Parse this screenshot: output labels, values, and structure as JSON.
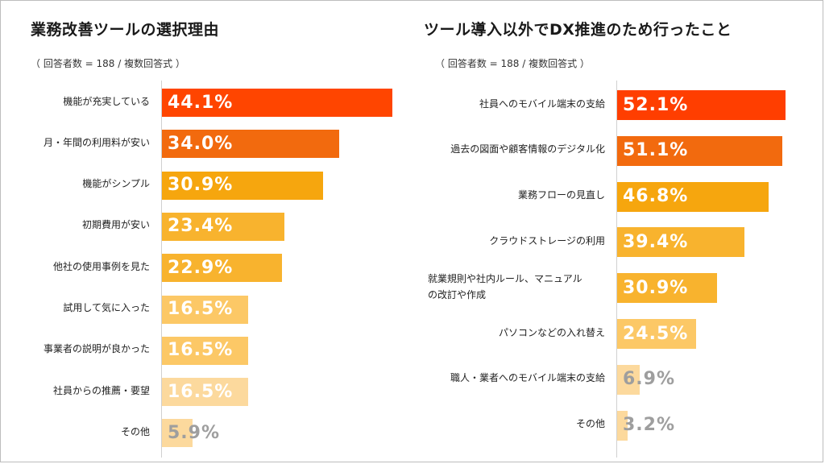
{
  "chart_data": [
    {
      "type": "bar",
      "orientation": "horizontal",
      "title": "業務改善ツールの選択理由",
      "subtitle": "（ 回答者数 = 188 / 複数回答式 ）",
      "categories": [
        "機能が充実している",
        "月・年間の利用料が安い",
        "機能がシンプル",
        "初期費用が安い",
        "他社の使用事例を見た",
        "試用して気に入った",
        "事業者の説明が良かった",
        "社員からの推薦・要望",
        "その他"
      ],
      "values": [
        44.1,
        34.0,
        30.9,
        23.4,
        22.9,
        16.5,
        16.5,
        16.5,
        5.9
      ],
      "value_labels": [
        "44.1%",
        "34.0%",
        "30.9%",
        "23.4%",
        "22.9%",
        "16.5%",
        "16.5%",
        "16.5%",
        "5.9%"
      ],
      "colors": [
        "#FF4500",
        "#F26A0E",
        "#F6A60E",
        "#F8B32E",
        "#F8B32E",
        "#FCC866",
        "#FCC866",
        "#FCD99D",
        "#FCD99D"
      ],
      "xlim": [
        0,
        50
      ],
      "xlabel": "",
      "ylabel": ""
    },
    {
      "type": "bar",
      "orientation": "horizontal",
      "title": "ツール導入以外でDX推進のため行ったこと",
      "subtitle": "（ 回答者数 = 188 / 複数回答式 ）",
      "categories": [
        "社員へのモバイル端末の支給",
        "過去の図面や顧客情報のデジタル化",
        "業務フローの見直し",
        "クラウドストレージの利用",
        "就業規則や社内ルール、マニュアル\nの改訂や作成",
        "パソコンなどの入れ替え",
        "職人・業者へのモバイル端末の支給",
        "その他"
      ],
      "values": [
        52.1,
        51.1,
        46.8,
        39.4,
        30.9,
        24.5,
        6.9,
        3.2
      ],
      "value_labels": [
        "52.1%",
        "51.1%",
        "46.8%",
        "39.4%",
        "30.9%",
        "24.5%",
        "6.9%",
        "3.2%"
      ],
      "colors": [
        "#FF3E00",
        "#F26A0E",
        "#F6A60E",
        "#F8B32E",
        "#F8B32E",
        "#FCC866",
        "#FCD99D",
        "#FCD99D"
      ],
      "xlim": [
        0,
        58
      ],
      "xlabel": "",
      "ylabel": ""
    }
  ],
  "style": {
    "label_color_inside": "#ffffff",
    "label_color_outside": "#9e9e9e"
  }
}
